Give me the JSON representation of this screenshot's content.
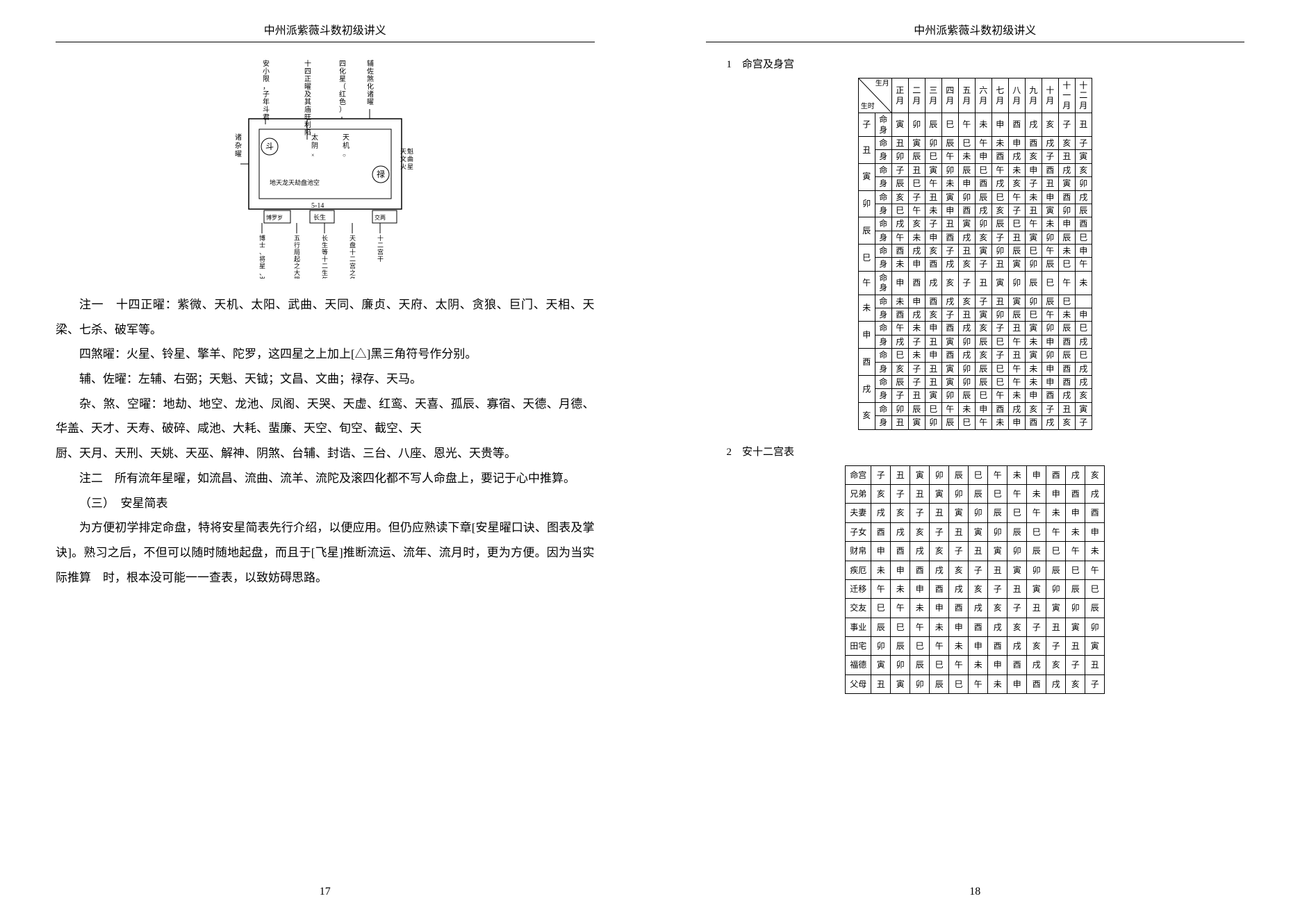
{
  "header": "中州派紫薇斗数初级讲义",
  "left_page_num": "17",
  "right_page_num": "18",
  "diagram": {
    "top_labels": [
      "安小限，子年斗君",
      "十四正曜及其庙旺利陷",
      "四化星（红色）",
      "辅佐煞化诸曜"
    ],
    "left_label": "诸杂曜",
    "circ1": "斗",
    "circ2": "禄",
    "mid_v1": "太阴",
    "mid_v2": "天机",
    "right_note": "天文火魁曲星",
    "inner_row": "地天龙天劫盘池空",
    "num": "5-14",
    "box1": "博罗岁士驿建",
    "box2": "长生",
    "box3": "交两友申",
    "bottom_labels": [
      "博士、将星、岁建等卅六流年流曜",
      "五行局起之大限岁数",
      "长生等十二生年流曜",
      "天盘十二宫之名字",
      "十二宫干"
    ]
  },
  "paragraphs": {
    "p1": "注一　十四正曜：紫微、天机、太阳、武曲、天同、廉贞、天府、太阴、贪狼、巨门、天相、天梁、七杀、破军等。",
    "p2": "四煞曜：火星、铃星、擎羊、陀罗，这四星之上加上[△]黑三角符号作分别。",
    "p3": "辅、佐曜：左辅、右弼；天魁、天钺；文昌、文曲；禄存、天马。",
    "p4": "杂、煞、空曜：地劫、地空、龙池、凤阁、天哭、天虚、红鸾、天喜、孤辰、寡宿、天德、月德、华盖、天才、天寿、破碎、咸池、大耗、蜚廉、天空、旬空、截空、天",
    "p5": "厨、天月、天刑、天姚、天巫、解神、阴煞、台辅、封诰、三台、八座、恩光、天贵等。",
    "p6": "注二　所有流年星曜，如流昌、流曲、流羊、流陀及滚四化都不写人命盘上，要记于心中推算。",
    "p7": "（三）　安星简表",
    "p8": "为方便初学排定命盘，特将安星简表先行介绍，以便应用。但仍应熟读下章[安星曜口诀、图表及掌诀]。熟习之后，不但可以随时随地起盘，而且于[飞星]推断流运、流年、流月时，更为方便。因为当实际推算　时，根本没可能一一查表，以致妨碍思路。"
  },
  "section1_title": "1　命宫及身宫",
  "section2_title": "2　安十二宫表",
  "table1": {
    "diag_top": "生月",
    "diag_bot": "生时",
    "col2": "命身",
    "months": [
      "正月",
      "二月",
      "三月",
      "四月",
      "五月",
      "六月",
      "七月",
      "八月",
      "九月",
      "十月",
      "十一月",
      "十二月"
    ],
    "row_heads": [
      "子",
      "丑",
      "寅",
      "卯",
      "辰",
      "巳",
      "午",
      "未",
      "申",
      "酉",
      "戌",
      "亥"
    ],
    "sub": [
      "命",
      "身"
    ],
    "rows": [
      [
        [
          "寅",
          "卯",
          "辰",
          "巳",
          "午",
          "未",
          "申",
          "酉",
          "戌",
          "亥",
          "子",
          "丑"
        ]
      ],
      [
        [
          "丑",
          "寅",
          "卯",
          "辰",
          "巳",
          "午",
          "未",
          "申",
          "酉",
          "戌",
          "亥",
          "子"
        ],
        [
          "卯",
          "辰",
          "巳",
          "午",
          "未",
          "申",
          "酉",
          "戌",
          "亥",
          "子",
          "丑",
          "寅"
        ]
      ],
      [
        [
          "子",
          "丑",
          "寅",
          "卯",
          "辰",
          "巳",
          "午",
          "未",
          "申",
          "酉",
          "戌",
          "亥"
        ],
        [
          "辰",
          "巳",
          "午",
          "未",
          "申",
          "酉",
          "戌",
          "亥",
          "子",
          "丑",
          "寅",
          "卯"
        ]
      ],
      [
        [
          "亥",
          "子",
          "丑",
          "寅",
          "卯",
          "辰",
          "巳",
          "午",
          "未",
          "申",
          "酉",
          "戌"
        ],
        [
          "巳",
          "午",
          "未",
          "申",
          "酉",
          "戌",
          "亥",
          "子",
          "丑",
          "寅",
          "卯",
          "辰"
        ]
      ],
      [
        [
          "戌",
          "亥",
          "子",
          "丑",
          "寅",
          "卯",
          "辰",
          "巳",
          "午",
          "未",
          "申",
          "酉"
        ],
        [
          "午",
          "未",
          "申",
          "酉",
          "戌",
          "亥",
          "子",
          "丑",
          "寅",
          "卯",
          "辰",
          "巳"
        ]
      ],
      [
        [
          "酉",
          "戌",
          "亥",
          "子",
          "丑",
          "寅",
          "卯",
          "辰",
          "巳",
          "午",
          "未",
          "申"
        ],
        [
          "未",
          "申",
          "酉",
          "戌",
          "亥",
          "子",
          "丑",
          "寅",
          "卯",
          "辰",
          "巳",
          "午"
        ]
      ],
      [
        [
          "申",
          "酉",
          "戌",
          "亥",
          "子",
          "丑",
          "寅",
          "卯",
          "辰",
          "巳",
          "午",
          "未"
        ]
      ],
      [
        [
          "未",
          "申",
          "酉",
          "戌",
          "亥",
          "子",
          "丑",
          "寅",
          "卯",
          "辰",
          "巳",
          ""
        ],
        [
          "酉",
          "戌",
          "亥",
          "子",
          "丑",
          "寅",
          "卯",
          "辰",
          "巳",
          "午",
          "未",
          "申"
        ]
      ],
      [
        [
          "午",
          "未",
          "申",
          "酉",
          "戌",
          "亥",
          "子",
          "丑",
          "寅",
          "卯",
          "辰",
          "巳"
        ],
        [
          "戌",
          "子",
          "丑",
          "寅",
          "卯",
          "辰",
          "巳",
          "午",
          "未",
          "申",
          "酉",
          "戌"
        ]
      ],
      [
        [
          "巳",
          "未",
          "申",
          "酉",
          "戌",
          "亥",
          "子",
          "丑",
          "寅",
          "卯",
          "辰",
          "巳"
        ],
        [
          "亥",
          "子",
          "丑",
          "寅",
          "卯",
          "辰",
          "巳",
          "午",
          "未",
          "申",
          "酉",
          "戌"
        ]
      ],
      [
        [
          "辰",
          "子",
          "丑",
          "寅",
          "卯",
          "辰",
          "巳",
          "午",
          "未",
          "申",
          "酉",
          "戌"
        ],
        [
          "子",
          "丑",
          "寅",
          "卯",
          "辰",
          "巳",
          "午",
          "未",
          "申",
          "酉",
          "戌",
          "亥"
        ]
      ],
      [
        [
          "卯",
          "辰",
          "巳",
          "午",
          "未",
          "申",
          "酉",
          "戌",
          "亥",
          "子",
          "丑",
          "寅"
        ],
        [
          "丑",
          "寅",
          "卯",
          "辰",
          "巳",
          "午",
          "未",
          "申",
          "酉",
          "戌",
          "亥",
          "子"
        ]
      ]
    ]
  },
  "table2": {
    "row_heads": [
      "命宫",
      "兄弟",
      "夫妻",
      "子女",
      "财帛",
      "疾厄",
      "迁移",
      "交友",
      "事业",
      "田宅",
      "福德",
      "父母"
    ],
    "rows": [
      [
        "子",
        "丑",
        "寅",
        "卯",
        "辰",
        "巳",
        "午",
        "未",
        "申",
        "酉",
        "戌",
        "亥"
      ],
      [
        "亥",
        "子",
        "丑",
        "寅",
        "卯",
        "辰",
        "巳",
        "午",
        "未",
        "申",
        "酉",
        "戌"
      ],
      [
        "戌",
        "亥",
        "子",
        "丑",
        "寅",
        "卯",
        "辰",
        "巳",
        "午",
        "未",
        "申",
        "酉"
      ],
      [
        "酉",
        "戌",
        "亥",
        "子",
        "丑",
        "寅",
        "卯",
        "辰",
        "巳",
        "午",
        "未",
        "申"
      ],
      [
        "申",
        "酉",
        "戌",
        "亥",
        "子",
        "丑",
        "寅",
        "卯",
        "辰",
        "巳",
        "午",
        "未"
      ],
      [
        "未",
        "申",
        "酉",
        "戌",
        "亥",
        "子",
        "丑",
        "寅",
        "卯",
        "辰",
        "巳",
        "午"
      ],
      [
        "午",
        "未",
        "申",
        "酉",
        "戌",
        "亥",
        "子",
        "丑",
        "寅",
        "卯",
        "辰",
        "巳"
      ],
      [
        "巳",
        "午",
        "未",
        "申",
        "酉",
        "戌",
        "亥",
        "子",
        "丑",
        "寅",
        "卯",
        "辰"
      ],
      [
        "辰",
        "巳",
        "午",
        "未",
        "申",
        "酉",
        "戌",
        "亥",
        "子",
        "丑",
        "寅",
        "卯"
      ],
      [
        "卯",
        "辰",
        "巳",
        "午",
        "未",
        "申",
        "酉",
        "戌",
        "亥",
        "子",
        "丑",
        "寅"
      ],
      [
        "寅",
        "卯",
        "辰",
        "巳",
        "午",
        "未",
        "申",
        "酉",
        "戌",
        "亥",
        "子",
        "丑"
      ],
      [
        "丑",
        "寅",
        "卯",
        "辰",
        "巳",
        "午",
        "未",
        "申",
        "酉",
        "戌",
        "亥",
        "子"
      ]
    ]
  }
}
